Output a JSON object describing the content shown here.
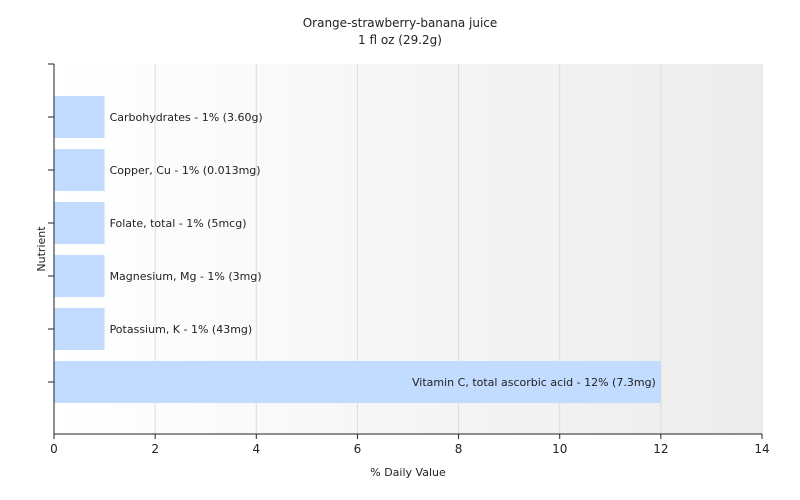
{
  "chart_data": {
    "type": "bar",
    "orientation": "horizontal",
    "title": "Orange-strawberry-banana juice",
    "subtitle": "1 fl oz (29.2g)",
    "xlabel": "% Daily Value",
    "ylabel": "Nutrient",
    "xlim": [
      0,
      14
    ],
    "xticks": [
      0,
      2,
      4,
      6,
      8,
      10,
      12,
      14
    ],
    "grid": true,
    "bar_color": "#c2dcff",
    "categories": [
      "Carbohydrates",
      "Copper, Cu",
      "Folate, total",
      "Magnesium, Mg",
      "Potassium, K",
      "Vitamin C, total ascorbic acid"
    ],
    "values": [
      1,
      1,
      1,
      1,
      1,
      12
    ],
    "labels": [
      "Carbohydrates - 1% (3.60g)",
      "Copper, Cu - 1% (0.013mg)",
      "Folate, total - 1% (5mcg)",
      "Magnesium, Mg - 1% (3mg)",
      "Potassium, K - 1% (43mg)",
      "Vitamin C, total ascorbic acid - 12% (7.3mg)"
    ]
  }
}
